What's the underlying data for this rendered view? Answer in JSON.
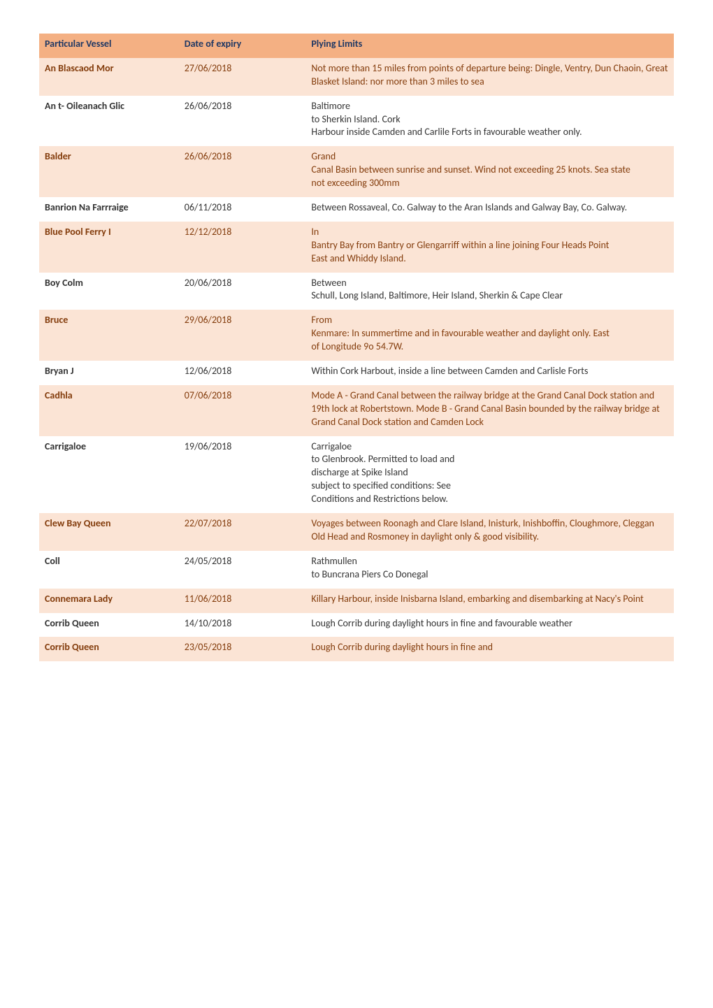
{
  "table": {
    "header_bg": "#f4b083",
    "header_color": "#1f3864",
    "stripe_bg": "#fbe4d5",
    "plain_bg": "#ffffff",
    "text_color": "#333333",
    "stripe_text_color": "#833c0c",
    "columns": [
      {
        "label": "Particular Vessel"
      },
      {
        "label": "Date of expiry"
      },
      {
        "label": "Plying Limits"
      }
    ],
    "rows": [
      {
        "vessel": "An Blascaod Mor",
        "expiry": "27/06/2018",
        "limits": "Not more than 15 miles from points of departure being: Dingle, Ventry, Dun Chaoin, Great Blasket Island: nor more than 3 miles to sea",
        "striped": true
      },
      {
        "vessel": "An t- Oileanach Glic",
        "expiry": "26/06/2018",
        "limits": "Baltimore\nto Sherkin Island. Cork\nHarbour inside Camden and Carlile Forts in favourable weather only.",
        "striped": false
      },
      {
        "vessel": "Balder",
        "expiry": "26/06/2018",
        "limits": "Grand\nCanal Basin between sunrise and sunset. Wind not exceeding 25 knots. Sea state\nnot exceeding 300mm",
        "striped": true
      },
      {
        "vessel": "Banrion Na Farrraige",
        "expiry": "06/11/2018",
        "limits": "Between Rossaveal, Co. Galway to the Aran Islands and Galway Bay, Co. Galway.",
        "striped": false
      },
      {
        "vessel": "Blue Pool Ferry I",
        "expiry": "12/12/2018",
        "limits": "In\nBantry Bay from Bantry or Glengarriff within a line joining Four Heads Point\nEast and Whiddy Island.",
        "striped": true
      },
      {
        "vessel": "Boy Colm",
        "expiry": "20/06/2018",
        "limits": "Between\nSchull, Long Island, Baltimore, Heir Island, Sherkin & Cape Clear",
        "striped": false
      },
      {
        "vessel": "Bruce",
        "expiry": "29/06/2018",
        "limits": "From\nKenmare: In summertime and in favourable weather and daylight only. East\nof Longitude 9o 54.7W.",
        "striped": true
      },
      {
        "vessel": "Bryan J",
        "expiry": "12/06/2018",
        "limits": "Within Cork Harbout, inside a line between Camden and Carlisle Forts",
        "striped": false
      },
      {
        "vessel": "Cadhla",
        "expiry": "07/06/2018",
        "limits": "Mode A - Grand Canal between the railway bridge at the Grand Canal Dock station and 19th lock at Robertstown. Mode B - Grand Canal Basin bounded by the railway bridge at Grand Canal Dock station and Camden Lock",
        "striped": true
      },
      {
        "vessel": "Carrigaloe",
        "expiry": "19/06/2018",
        "limits": "Carrigaloe\nto Glenbrook. Permitted to load and\ndischarge at Spike    Island\nsubject to specified conditions: See\nConditions and Restrictions below.",
        "striped": false
      },
      {
        "vessel": "Clew Bay Queen",
        "expiry": "22/07/2018",
        "limits": "Voyages between Roonagh and Clare Island, Inisturk, Inishboffin, Cloughmore, Cleggan Old Head and Rosmoney in daylight only & good visibility.",
        "striped": true
      },
      {
        "vessel": "Coll",
        "expiry": "24/05/2018",
        "limits": "Rathmullen\nto Buncrana Piers Co Donegal",
        "striped": false
      },
      {
        "vessel": "Connemara Lady",
        "expiry": "11/06/2018",
        "limits": "Killary Harbour, inside Inisbarna Island, embarking and disembarking at Nacy's Point",
        "striped": true
      },
      {
        "vessel": "Corrib Queen",
        "expiry": "14/10/2018",
        "limits": "Lough Corrib during daylight hours in fine and favourable weather",
        "striped": false
      },
      {
        "vessel": "Corrib Queen",
        "expiry": "23/05/2018",
        "limits": "Lough Corrib during daylight hours in fine and",
        "striped": true
      }
    ]
  }
}
